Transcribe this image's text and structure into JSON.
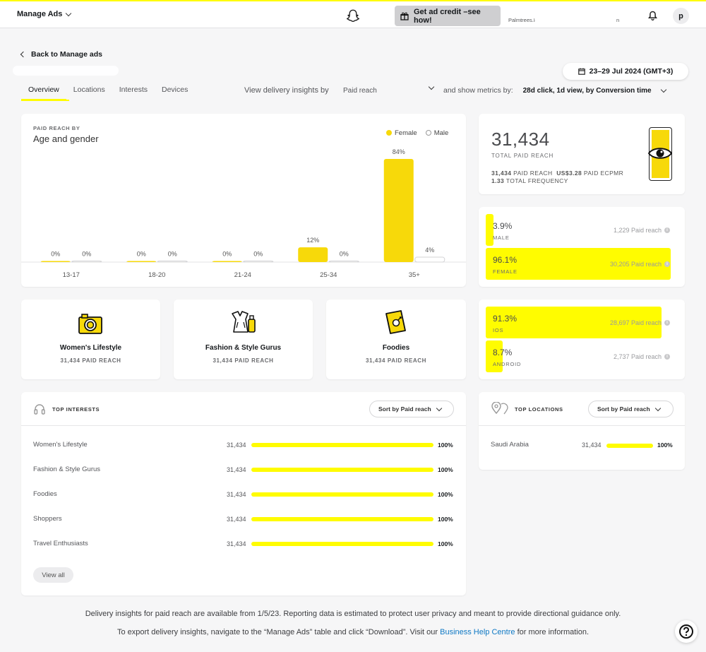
{
  "app": {
    "title": "Manage Ads",
    "credit_label": "Get ad credit –see how!",
    "account_name": "Palmtrees.Ko",
    "account_suffix": "n",
    "avatar_initial": "p"
  },
  "nav": {
    "back_label": "Back to Manage ads",
    "date_range": "23–29 Jul 2024 (GMT+3)"
  },
  "tabs": [
    {
      "label": "Overview",
      "active": true
    },
    {
      "label": "Locations"
    },
    {
      "label": "Interests"
    },
    {
      "label": "Devices"
    }
  ],
  "insights": {
    "label": "View delivery insights by",
    "selected": "Paid reach",
    "metrics_label": "and show metrics by:",
    "metrics_value": "28d click, 1d view, by Conversion time"
  },
  "age_gender": {
    "eyebrow": "PAID REACH BY",
    "title": "Age and gender",
    "legend": {
      "female": "Female",
      "male": "Male"
    }
  },
  "chart_data": {
    "type": "bar",
    "categories": [
      "13-17",
      "18-20",
      "21-24",
      "25-34",
      "35+"
    ],
    "series": [
      {
        "name": "Female",
        "values": [
          0,
          0,
          0,
          12,
          84
        ],
        "labels": [
          "0%",
          "0%",
          "0%",
          "12%",
          "84%"
        ],
        "color": "#f7d90a"
      },
      {
        "name": "Male",
        "values": [
          0,
          0,
          0,
          0,
          4
        ],
        "labels": [
          "0%",
          "0%",
          "0%",
          "0%",
          "4%"
        ],
        "color": "#ffffff"
      }
    ],
    "ylim": [
      0,
      84
    ]
  },
  "total": {
    "value": "31,434",
    "label": "TOTAL PAID REACH",
    "paid_reach_value": "31,434",
    "paid_reach_label": "PAID REACH",
    "ecpmr_value": "US$3.28",
    "ecpmr_label": "PAID ECPMR",
    "frequency_value": "1.33",
    "frequency_label": "TOTAL FREQUENCY"
  },
  "gender_split": [
    {
      "pct": "3.9%",
      "label": "MALE",
      "reach": "1,229 Paid reach",
      "share": 0.039
    },
    {
      "pct": "96.1%",
      "label": "FEMALE",
      "reach": "30,205 Paid reach",
      "share": 0.961
    }
  ],
  "os_split": [
    {
      "pct": "91.3%",
      "label": "IOS",
      "reach": "28,697 Paid reach",
      "share": 0.913
    },
    {
      "pct": "8.7%",
      "label": "ANDROID",
      "reach": "2,737 Paid reach",
      "share": 0.087
    }
  ],
  "audiences": [
    {
      "name": "Women's Lifestyle",
      "value": "31,434",
      "label": "PAID REACH",
      "icon": "camera-icon"
    },
    {
      "name": "Fashion & Style Gurus",
      "value": "31,434",
      "label": "PAID REACH",
      "icon": "dress-icon"
    },
    {
      "name": "Foodies",
      "value": "31,434",
      "label": "PAID REACH",
      "icon": "book-icon"
    }
  ],
  "top_interests": {
    "title": "TOP INTERESTS",
    "sort_label": "Sort by Paid reach",
    "rows": [
      {
        "name": "Women's Lifestyle",
        "value": "31,434",
        "pct": "100%",
        "share": 1.0
      },
      {
        "name": "Fashion & Style Gurus",
        "value": "31,434",
        "pct": "100%",
        "share": 1.0
      },
      {
        "name": "Foodies",
        "value": "31,434",
        "pct": "100%",
        "share": 1.0
      },
      {
        "name": "Shoppers",
        "value": "31,434",
        "pct": "100%",
        "share": 1.0
      },
      {
        "name": "Travel Enthusiasts",
        "value": "31,434",
        "pct": "100%",
        "share": 1.0
      }
    ],
    "view_all": "View all"
  },
  "top_locations": {
    "title": "TOP LOCATIONS",
    "sort_label": "Sort by Paid reach",
    "rows": [
      {
        "name": "Saudi Arabia",
        "value": "31,434",
        "pct": "100%",
        "share": 1.0
      }
    ]
  },
  "footer": {
    "line1": "Delivery insights for paid reach are available from 1/5/23. Reporting data is estimated to protect user privacy and meant to provide directional guidance only.",
    "line2_pre": "To export delivery insights, navigate to the “Manage Ads” table and click “Download”. Visit our",
    "line2_link": "Business Help Centre",
    "line2_post": "for more information."
  },
  "colors": {
    "accent": "#fffc00",
    "bar": "#f7d90a",
    "link": "#0e78c4"
  }
}
